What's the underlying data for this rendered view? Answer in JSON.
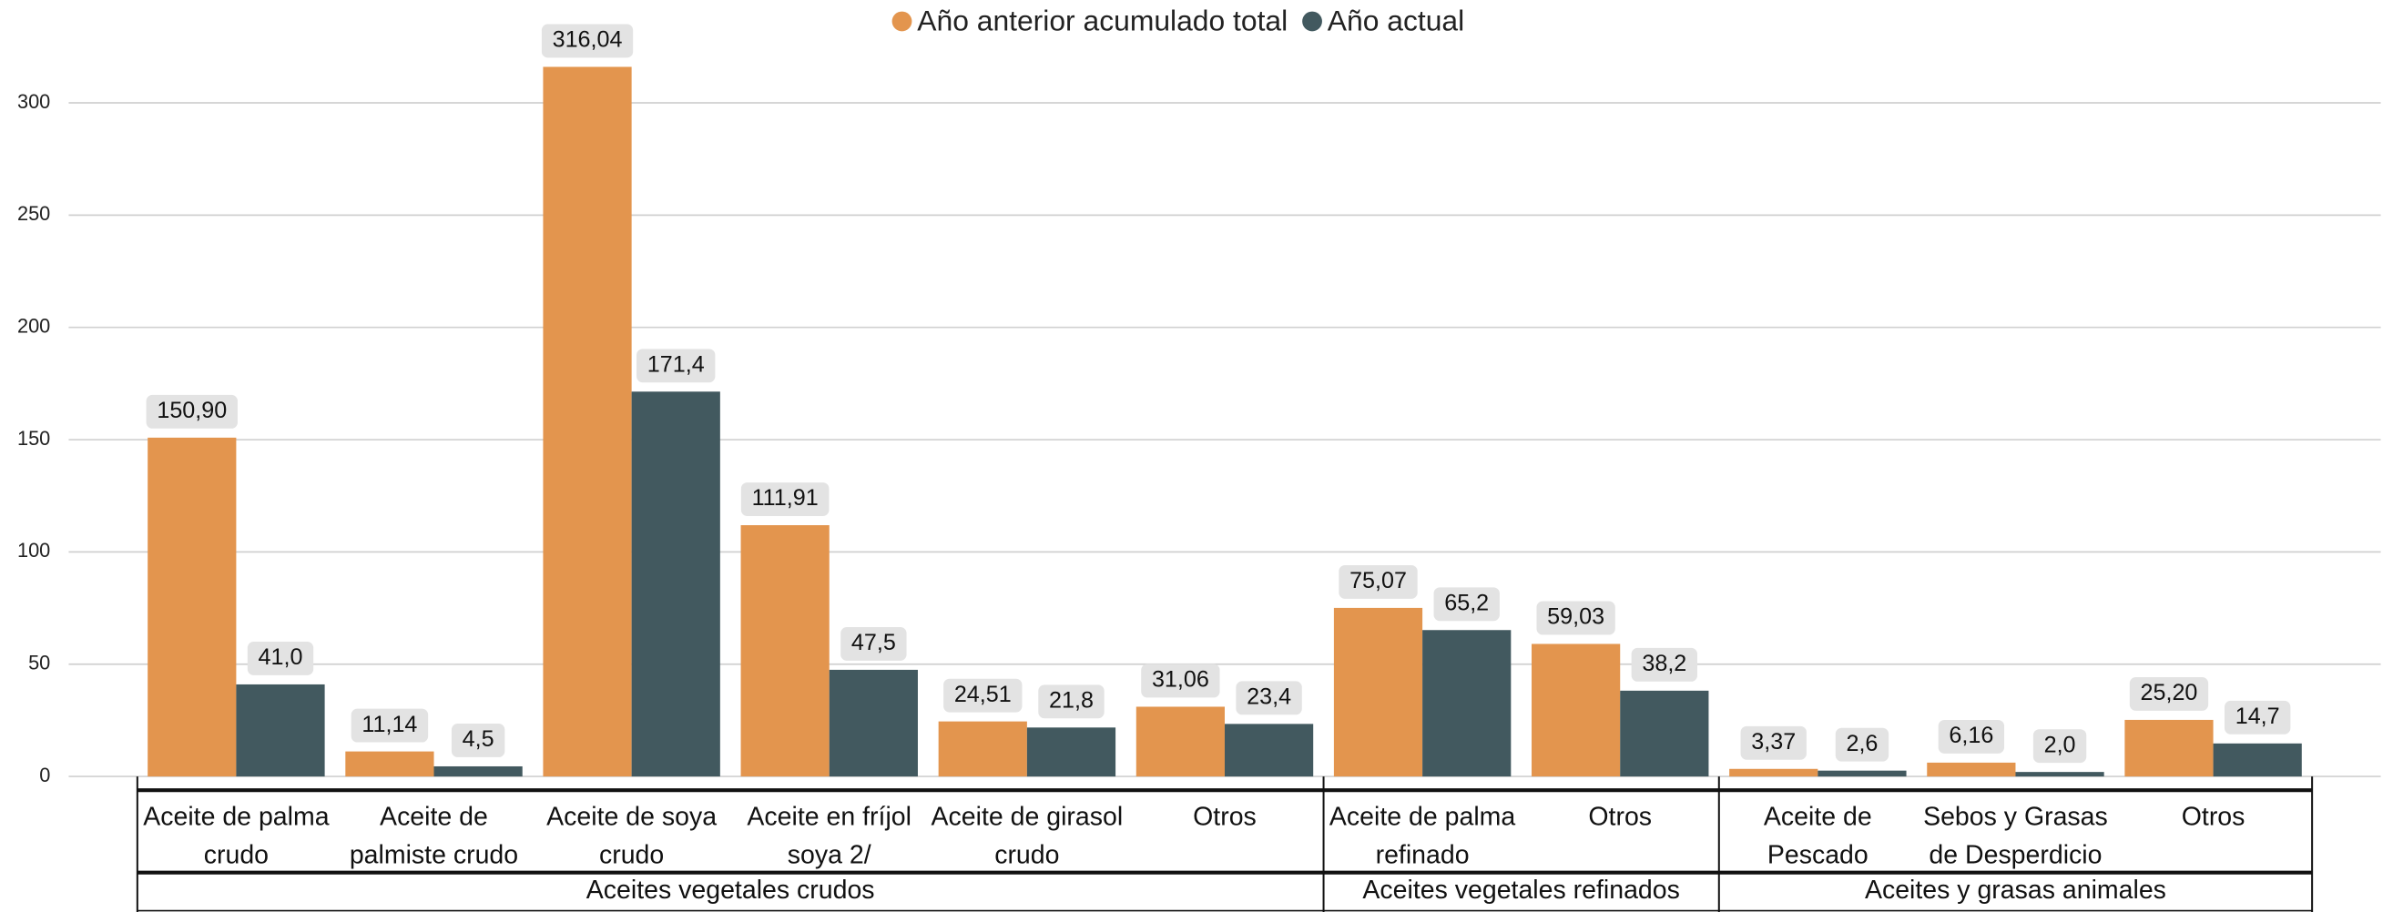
{
  "chart_data": {
    "type": "bar",
    "groups": [
      {
        "label": "Aceites vegetales crudos",
        "categories": [
          "Aceite de palma crudo",
          "Aceite de palmiste crudo",
          "Aceite de soya crudo",
          "Aceite en fríjol soya 2/",
          "Aceite de girasol crudo",
          "Otros"
        ]
      },
      {
        "label": "Aceites vegetales refinados",
        "categories": [
          "Aceite de palma refinado",
          "Otros"
        ]
      },
      {
        "label": "Aceites y grasas animales",
        "categories": [
          "Aceite de Pescado",
          "Sebos y Grasas de Desperdicio",
          "Otros"
        ]
      }
    ],
    "series": [
      {
        "name": "Año anterior acumulado total",
        "color": "#e3954e",
        "values": [
          150.9,
          11.14,
          316.04,
          111.91,
          24.51,
          31.06,
          75.07,
          59.03,
          3.37,
          6.16,
          25.2
        ],
        "value_labels": [
          "150,90",
          "11,14",
          "316,04",
          "111,91",
          "24,51",
          "31,06",
          "75,07",
          "59,03",
          "3,37",
          "6,16",
          "25,20"
        ]
      },
      {
        "name": "Año actual",
        "color": "#42595f",
        "values": [
          41.0,
          4.5,
          171.4,
          47.5,
          21.8,
          23.4,
          65.2,
          38.2,
          2.6,
          2.0,
          14.7
        ],
        "value_labels": [
          "41,0",
          "4,5",
          "171,4",
          "47,5",
          "21,8",
          "23,4",
          "65,2",
          "38,2",
          "2,6",
          "2,0",
          "14,7"
        ]
      }
    ],
    "ylim": [
      0,
      320
    ],
    "yticks": [
      0,
      50,
      100,
      150,
      200,
      250,
      300
    ],
    "grid": true,
    "legend": "top"
  }
}
